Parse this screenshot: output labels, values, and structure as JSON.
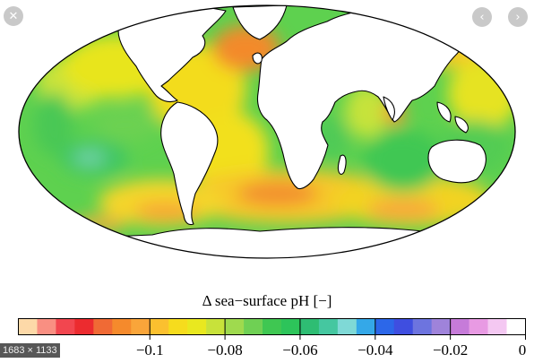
{
  "viewer": {
    "close_icon": "close-icon",
    "prev_icon": "chevron-left-icon",
    "next_icon": "chevron-right-icon",
    "image_dimensions": "1683 × 1133"
  },
  "figure": {
    "colorbar_label": "Δ sea−surface pH [−]",
    "colorbar_colors": [
      "#fdd9a8",
      "#f98f82",
      "#f2464f",
      "#ec2b2f",
      "#f06a35",
      "#f58a2c",
      "#f9a53a",
      "#fbc02f",
      "#f6dc1d",
      "#e9e81f",
      "#c8e23a",
      "#9fda4e",
      "#6fd054",
      "#3fc752",
      "#2dc45a",
      "#2ebd73",
      "#45c7a0",
      "#7fd9d6",
      "#34a8e8",
      "#2c67e9",
      "#3f4ee0",
      "#6d74df",
      "#9f83da",
      "#c67bd9",
      "#e89ae3",
      "#f4c8f2",
      "#ffffff"
    ],
    "colorbar_ticks": [
      {
        "label": "−0.1",
        "value": -0.1
      },
      {
        "label": "−0.08",
        "value": -0.08
      },
      {
        "label": "−0.06",
        "value": -0.06
      },
      {
        "label": "−0.04",
        "value": -0.04
      },
      {
        "label": "−0.02",
        "value": -0.02
      },
      {
        "label": "0",
        "value": 0
      }
    ],
    "colorbar_min": -0.135,
    "colorbar_max": 0
  }
}
